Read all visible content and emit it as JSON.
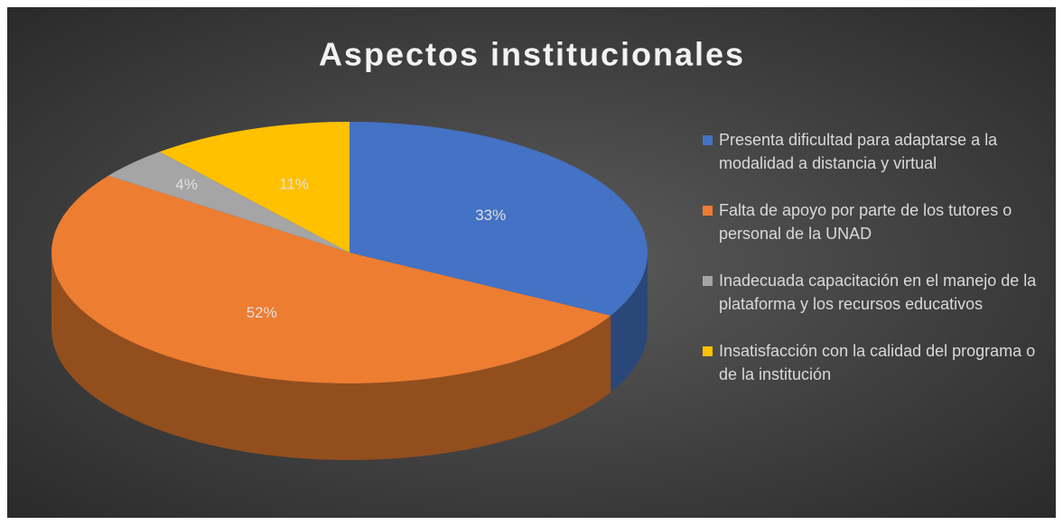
{
  "chart_data": {
    "type": "pie",
    "title": "Aspectos institucionales",
    "categories": [
      "Presenta dificultad para adaptarse a la modalidad a distancia y virtual",
      "Falta de apoyo por parte de los tutores o personal de la UNAD",
      "Inadecuada capacitación en el manejo de la plataforma y los recursos educativos",
      "Insatisfacción con la calidad del programa o de la institución"
    ],
    "values": [
      33,
      52,
      4,
      11
    ],
    "value_labels": [
      "33%",
      "52%",
      "4%",
      "11%"
    ],
    "colors": [
      "#4472c4",
      "#ed7d31",
      "#a5a5a5",
      "#ffc000"
    ],
    "legend": "right"
  }
}
